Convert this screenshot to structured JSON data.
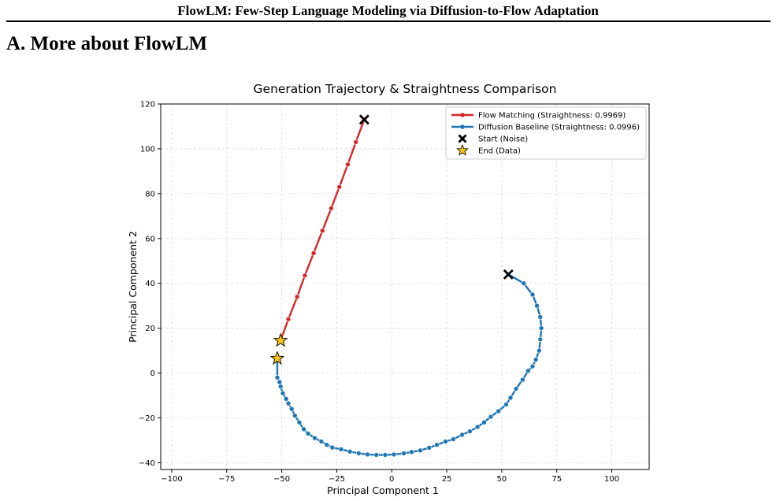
{
  "header": {
    "running_title": "FlowLM: Few-Step Language Modeling via Diffusion-to-Flow Adaptation"
  },
  "section": {
    "title": "A. More about FlowLM"
  },
  "chart_data": {
    "type": "line",
    "title": "Generation Trajectory & Straightness Comparison",
    "xlabel": "Principal Component 1",
    "ylabel": "Principal Component 2",
    "xlim": [
      -105,
      117
    ],
    "ylim": [
      -43,
      120
    ],
    "xticks": [
      -100,
      -75,
      -50,
      -25,
      0,
      25,
      50,
      75,
      100
    ],
    "yticks": [
      -40,
      -20,
      0,
      20,
      40,
      60,
      80,
      100,
      120
    ],
    "grid": true,
    "legend_position": "top-right",
    "series": [
      {
        "name": "Flow Matching (Straightness: 0.9969)",
        "color": "#d62728",
        "points": [
          [
            -12.5,
            113
          ],
          [
            -16.3,
            103
          ],
          [
            -20,
            93
          ],
          [
            -23.8,
            83
          ],
          [
            -27.5,
            73.5
          ],
          [
            -31.5,
            63.5
          ],
          [
            -35.5,
            53.5
          ],
          [
            -39.5,
            43.5
          ],
          [
            -43,
            34
          ],
          [
            -47,
            24
          ],
          [
            -50.5,
            14.5
          ]
        ]
      },
      {
        "name": "Diffusion Baseline (Straightness: 0.0996)",
        "color": "#1f77b4",
        "points": [
          [
            53,
            44
          ],
          [
            60,
            40
          ],
          [
            64,
            35
          ],
          [
            66,
            30
          ],
          [
            67.5,
            25
          ],
          [
            68,
            20
          ],
          [
            67.5,
            15
          ],
          [
            67,
            10
          ],
          [
            65.5,
            6
          ],
          [
            64,
            3
          ],
          [
            62,
            1
          ],
          [
            59.5,
            -3
          ],
          [
            56.5,
            -7
          ],
          [
            54,
            -11
          ],
          [
            52,
            -14
          ],
          [
            48.5,
            -17
          ],
          [
            45,
            -19.5
          ],
          [
            42,
            -22
          ],
          [
            39,
            -24
          ],
          [
            35.5,
            -26
          ],
          [
            32,
            -27.5
          ],
          [
            28,
            -29.5
          ],
          [
            24.5,
            -30.5
          ],
          [
            20.5,
            -32
          ],
          [
            17,
            -33.3
          ],
          [
            13,
            -34.5
          ],
          [
            9,
            -35.2
          ],
          [
            5.5,
            -35.8
          ],
          [
            1,
            -36.3
          ],
          [
            -3,
            -36.5
          ],
          [
            -7,
            -36.5
          ],
          [
            -11,
            -36.3
          ],
          [
            -15,
            -35.8
          ],
          [
            -19,
            -35
          ],
          [
            -23,
            -34
          ],
          [
            -27,
            -33.2
          ],
          [
            -29.5,
            -32
          ],
          [
            -32,
            -30.5
          ],
          [
            -35,
            -29
          ],
          [
            -38,
            -27
          ],
          [
            -40,
            -25
          ],
          [
            -42,
            -22
          ],
          [
            -44,
            -19
          ],
          [
            -45.5,
            -16
          ],
          [
            -47,
            -13.5
          ],
          [
            -48,
            -11.5
          ],
          [
            -49.5,
            -9
          ],
          [
            -50.5,
            -6
          ],
          [
            -51,
            -4
          ],
          [
            -52,
            -2
          ],
          [
            -52,
            6.5
          ]
        ]
      }
    ],
    "markers": [
      {
        "label": "Start (Noise)",
        "shape": "x",
        "color": "#000000",
        "points": [
          [
            -12.5,
            113
          ],
          [
            53,
            44
          ]
        ]
      },
      {
        "label": "End (Data)",
        "shape": "star",
        "color": "#f5c518",
        "points": [
          [
            -50.5,
            14.5
          ],
          [
            -52,
            6.5
          ]
        ]
      }
    ]
  }
}
